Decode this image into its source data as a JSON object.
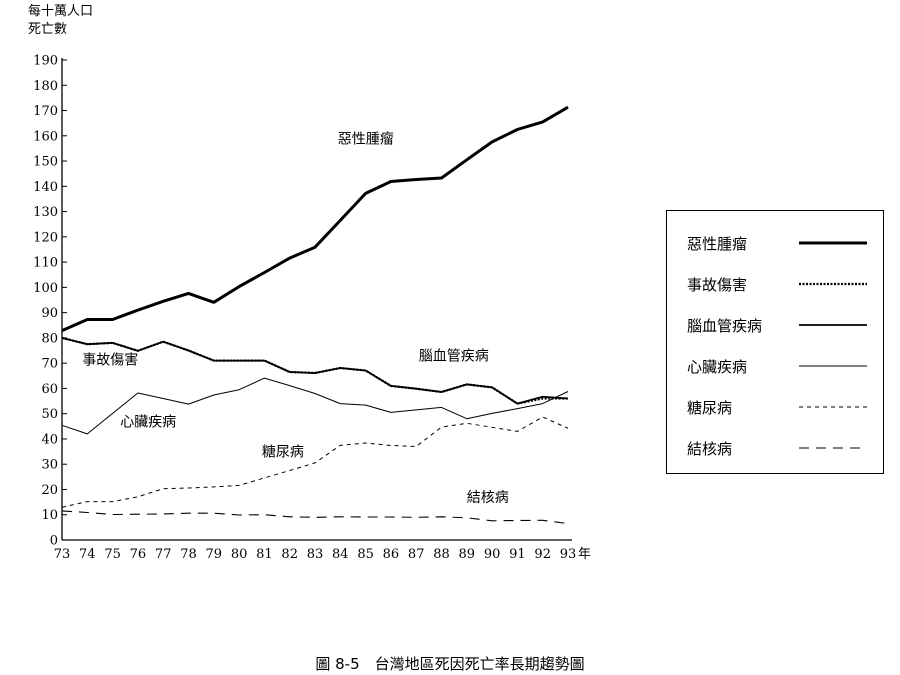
{
  "y_axis_label_line1": "每十萬人口",
  "y_axis_label_line2": "死亡數",
  "caption": "圖 8-5　台灣地區死因死亡率長期趨勢圖",
  "chart_data": {
    "type": "line",
    "x_unit": "年",
    "x": [
      73,
      74,
      75,
      76,
      77,
      78,
      79,
      80,
      81,
      82,
      83,
      84,
      85,
      86,
      87,
      88,
      89,
      90,
      91,
      92,
      93
    ],
    "xticks": [
      "73",
      "74",
      "75",
      "76",
      "77",
      "78",
      "79",
      "80",
      "81",
      "82",
      "83",
      "84",
      "85",
      "86",
      "87",
      "88",
      "89",
      "90",
      "91",
      "92",
      "93"
    ],
    "ylim": [
      0,
      190
    ],
    "yticks": [
      0,
      10,
      20,
      30,
      40,
      50,
      60,
      70,
      80,
      90,
      100,
      110,
      120,
      130,
      140,
      150,
      160,
      170,
      180,
      190
    ],
    "series": [
      {
        "name": "惡性腫瘤",
        "style": "thick-solid",
        "color": "#000000",
        "values": [
          82.9,
          87.3,
          87.3,
          91.0,
          94.5,
          97.6,
          94.1,
          100.3,
          105.9,
          111.6,
          115.9,
          126.5,
          137.2,
          141.9,
          142.7,
          143.3,
          150.5,
          157.6,
          162.5,
          165.5,
          171.3
        ]
      },
      {
        "name": "事故傷害",
        "style": "dotted",
        "color": "#000000",
        "values": [
          80.0,
          77.5,
          78.0,
          74.9,
          78.5,
          75.0,
          71.0,
          71.0,
          71.0,
          66.5,
          66.1,
          68.1,
          67.1,
          61.0,
          59.9,
          58.6,
          61.6,
          60.4,
          54.0,
          56.0,
          56.0
        ]
      },
      {
        "name": "腦血管疾病",
        "style": "solid",
        "color": "#000000",
        "values": [
          80.0,
          77.5,
          78.0,
          74.9,
          78.5,
          75.0,
          71.0,
          71.0,
          71.0,
          66.5,
          66.1,
          68.1,
          67.1,
          61.0,
          59.9,
          58.6,
          61.6,
          60.4,
          54.0,
          56.7,
          56.0
        ]
      },
      {
        "name": "心臟疾病",
        "style": "thin-solid",
        "color": "#000000",
        "values": [
          45.4,
          42.0,
          50.1,
          58.2,
          56.0,
          53.8,
          57.4,
          59.5,
          64.1,
          61.1,
          58.0,
          54.0,
          53.4,
          50.5,
          51.5,
          52.5,
          48.0,
          50.1,
          52.0,
          54.0,
          58.8
        ]
      },
      {
        "name": "糖尿病",
        "style": "short-dash",
        "color": "#000000",
        "values": [
          13.0,
          15.2,
          15.2,
          17.1,
          20.3,
          20.6,
          21.0,
          21.6,
          24.6,
          27.5,
          30.5,
          37.5,
          38.4,
          37.4,
          37.0,
          44.7,
          46.2,
          44.6,
          43.0,
          48.7,
          44.2
        ]
      },
      {
        "name": "結核病",
        "style": "long-dash",
        "color": "#000000",
        "values": [
          11.5,
          10.9,
          10.1,
          10.2,
          10.3,
          10.6,
          10.6,
          9.9,
          10.0,
          9.2,
          9.0,
          9.2,
          9.1,
          9.1,
          9.0,
          9.2,
          8.8,
          7.6,
          7.7,
          7.8,
          6.5
        ]
      }
    ],
    "annotations": [
      {
        "text": "惡性腫瘤",
        "x": 83.9,
        "y": 157
      },
      {
        "text": "事故傷害",
        "x": 73.8,
        "y": 69.5
      },
      {
        "text": "腦血管疾病",
        "x": 87.1,
        "y": 71
      },
      {
        "text": "心臟疾病",
        "x": 75.3,
        "y": 45
      },
      {
        "text": "糖尿病",
        "x": 80.9,
        "y": 33
      },
      {
        "text": "結核病",
        "x": 89.0,
        "y": 15
      }
    ],
    "legend": {
      "position": "right",
      "items": [
        {
          "label": "惡性腫瘤",
          "style": "thick-solid"
        },
        {
          "label": "事故傷害",
          "style": "dotted"
        },
        {
          "label": "腦血管疾病",
          "style": "solid"
        },
        {
          "label": "心臟疾病",
          "style": "thin-solid"
        },
        {
          "label": "糖尿病",
          "style": "short-dash"
        },
        {
          "label": "結核病",
          "style": "long-dash"
        }
      ]
    },
    "grid": false
  }
}
